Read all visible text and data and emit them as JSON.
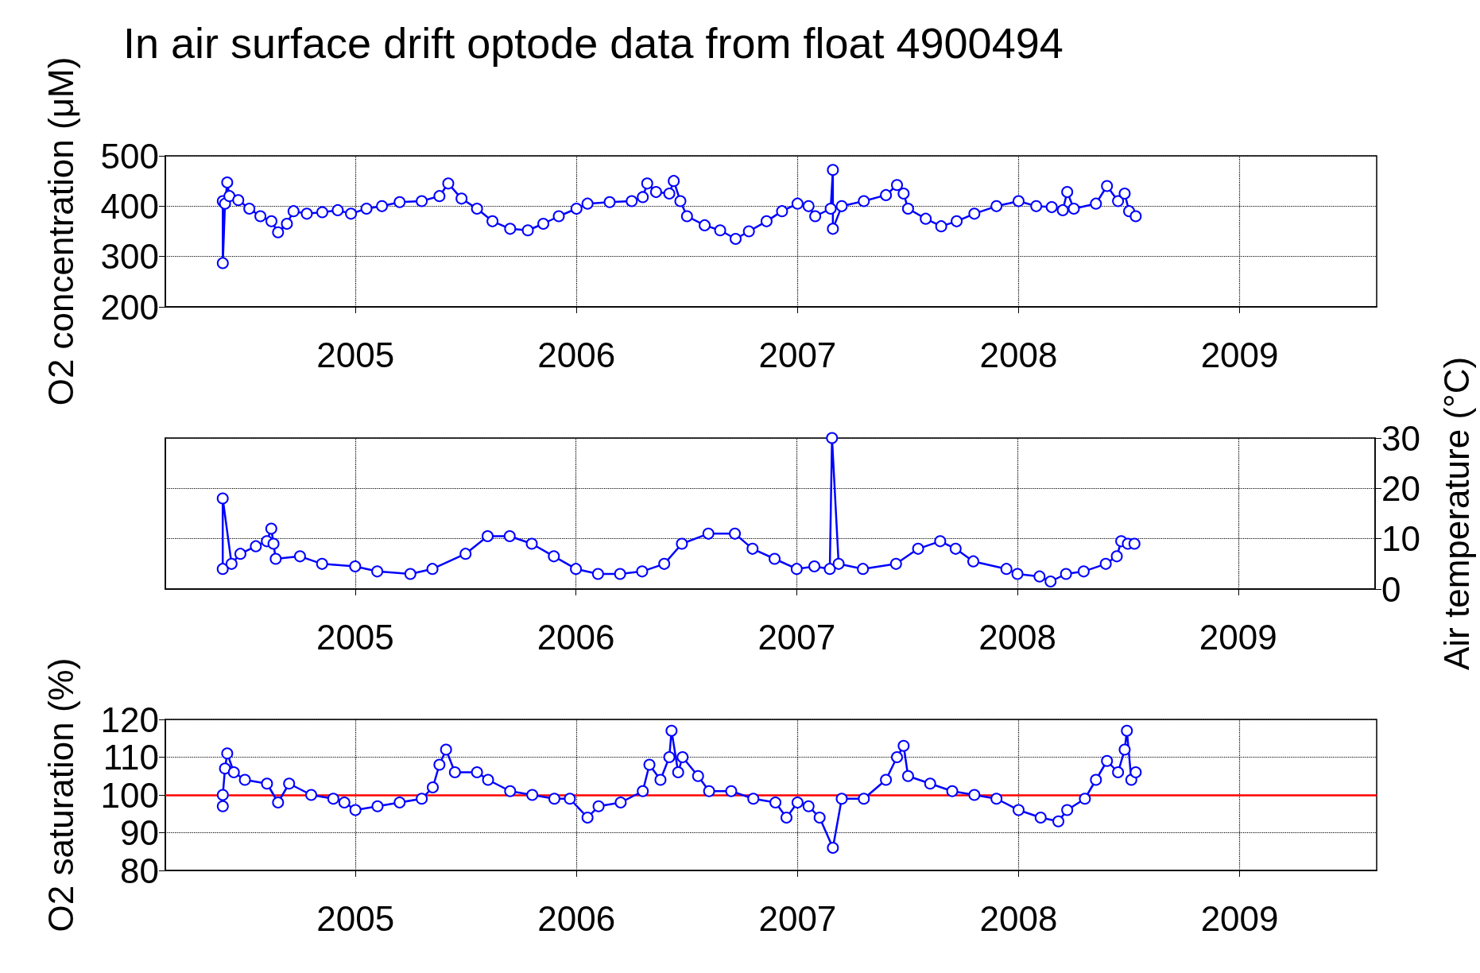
{
  "chart_data": [
    {
      "type": "line",
      "title": "In air surface drift optode data from float 4900494",
      "ylabel": "O2 concentration (μM)",
      "xlim": [
        2004.14,
        2009.62
      ],
      "xticks": [
        2005,
        2006,
        2007,
        2008,
        2009
      ],
      "ylim": [
        200,
        500
      ],
      "yticks": [
        200,
        300,
        400,
        500
      ],
      "grid": true,
      "marker": "circle",
      "color": "#0000ff",
      "x": [
        2004.4,
        2004.4,
        2004.41,
        2004.42,
        2004.43,
        2004.47,
        2004.52,
        2004.57,
        2004.62,
        2004.65,
        2004.69,
        2004.72,
        2004.78,
        2004.85,
        2004.92,
        2004.98,
        2005.05,
        2005.12,
        2005.2,
        2005.3,
        2005.38,
        2005.42,
        2005.48,
        2005.55,
        2005.62,
        2005.7,
        2005.78,
        2005.85,
        2005.92,
        2006.0,
        2006.05,
        2006.15,
        2006.25,
        2006.3,
        2006.32,
        2006.36,
        2006.42,
        2006.44,
        2006.47,
        2006.5,
        2006.58,
        2006.65,
        2006.72,
        2006.78,
        2006.86,
        2006.93,
        2007.0,
        2007.05,
        2007.08,
        2007.15,
        2007.16,
        2007.16,
        2007.2,
        2007.3,
        2007.4,
        2007.45,
        2007.48,
        2007.5,
        2007.58,
        2007.65,
        2007.72,
        2007.8,
        2007.9,
        2008.0,
        2008.08,
        2008.15,
        2008.2,
        2008.22,
        2008.25,
        2008.35,
        2008.4,
        2008.45,
        2008.48,
        2008.5,
        2008.53
      ],
      "values": [
        410,
        287,
        405,
        447,
        420,
        412,
        395,
        380,
        370,
        348,
        365,
        390,
        385,
        388,
        392,
        385,
        395,
        400,
        408,
        410,
        420,
        445,
        415,
        395,
        370,
        355,
        352,
        365,
        380,
        395,
        405,
        408,
        410,
        418,
        445,
        428,
        425,
        450,
        410,
        380,
        362,
        352,
        335,
        350,
        370,
        390,
        405,
        400,
        380,
        395,
        472,
        355,
        400,
        410,
        422,
        442,
        425,
        395,
        375,
        360,
        370,
        385,
        400,
        410,
        400,
        398,
        392,
        428,
        395,
        405,
        440,
        410,
        425,
        390,
        380
      ]
    },
    {
      "type": "line",
      "y2label": "Air temperature (°C)",
      "xlim": [
        2004.14,
        2009.62
      ],
      "xticks": [
        2005,
        2006,
        2007,
        2008,
        2009
      ],
      "y2lim": [
        0,
        30
      ],
      "y2ticks": [
        0,
        10,
        20,
        30
      ],
      "grid": true,
      "marker": "circle",
      "x": [
        2004.4,
        2004.4,
        2004.44,
        2004.48,
        2004.55,
        2004.6,
        2004.62,
        2004.63,
        2004.64,
        2004.75,
        2004.85,
        2005.0,
        2005.1,
        2005.25,
        2005.35,
        2005.5,
        2005.6,
        2005.7,
        2005.8,
        2005.9,
        2006.0,
        2006.1,
        2006.2,
        2006.3,
        2006.4,
        2006.48,
        2006.6,
        2006.72,
        2006.8,
        2006.9,
        2007.0,
        2007.08,
        2007.15,
        2007.16,
        2007.19,
        2007.3,
        2007.45,
        2007.55,
        2007.65,
        2007.72,
        2007.8,
        2007.95,
        2008.0,
        2008.1,
        2008.15,
        2008.22,
        2008.3,
        2008.4,
        2008.45,
        2008.47,
        2008.5,
        2008.53
      ],
      "series": [
        {
          "color": "#0000ff",
          "axis": "y2",
          "values": [
            4,
            18,
            5,
            7,
            8.5,
            9.5,
            12,
            9,
            6,
            6.5,
            5,
            4.5,
            3.5,
            3,
            4,
            7,
            10.5,
            10.5,
            9,
            6.5,
            4,
            3,
            3,
            3.5,
            5,
            9,
            11,
            11,
            8,
            6,
            4,
            4.5,
            4,
            30,
            5,
            4,
            5,
            8,
            9.5,
            8,
            5.5,
            4,
            3,
            2.5,
            1.5,
            3,
            3.5,
            5,
            6.5,
            9.5,
            9,
            9
          ]
        }
      ]
    },
    {
      "type": "line",
      "ylabel": "O2 saturation (%)",
      "xlim": [
        2004.14,
        2009.62
      ],
      "xticks": [
        2005,
        2006,
        2007,
        2008,
        2009
      ],
      "ylim": [
        80,
        120
      ],
      "yticks": [
        80,
        90,
        100,
        110,
        120
      ],
      "grid": true,
      "marker": "circle",
      "color": "#0000ff",
      "ref_lines": [
        {
          "axis": "y",
          "value": 100,
          "color": "#ff0000"
        }
      ],
      "x": [
        2004.4,
        2004.4,
        2004.41,
        2004.42,
        2004.45,
        2004.5,
        2004.6,
        2004.65,
        2004.7,
        2004.8,
        2004.9,
        2004.95,
        2005.0,
        2005.1,
        2005.2,
        2005.3,
        2005.35,
        2005.38,
        2005.41,
        2005.45,
        2005.55,
        2005.6,
        2005.7,
        2005.8,
        2005.9,
        2005.97,
        2006.05,
        2006.1,
        2006.2,
        2006.3,
        2006.33,
        2006.38,
        2006.42,
        2006.43,
        2006.46,
        2006.48,
        2006.55,
        2006.6,
        2006.7,
        2006.8,
        2006.9,
        2006.95,
        2007.0,
        2007.05,
        2007.1,
        2007.16,
        2007.2,
        2007.3,
        2007.4,
        2007.45,
        2007.48,
        2007.5,
        2007.6,
        2007.7,
        2007.8,
        2007.9,
        2008.0,
        2008.1,
        2008.18,
        2008.22,
        2008.3,
        2008.35,
        2008.4,
        2008.45,
        2008.48,
        2008.49,
        2008.51,
        2008.53
      ],
      "values": [
        97,
        100,
        107,
        111,
        106,
        104,
        103,
        98,
        103,
        100,
        99,
        98,
        96,
        97,
        98,
        99,
        102,
        108,
        112,
        106,
        106,
        104,
        101,
        100,
        99,
        99,
        94,
        97,
        98,
        101,
        108,
        104,
        110,
        117,
        106,
        110,
        105,
        101,
        101,
        99,
        98,
        94,
        98,
        97,
        94,
        86,
        99,
        99,
        104,
        110,
        113,
        105,
        103,
        101,
        100,
        99,
        96,
        94,
        93,
        96,
        99,
        104,
        109,
        106,
        112,
        117,
        104,
        106
      ]
    }
  ]
}
